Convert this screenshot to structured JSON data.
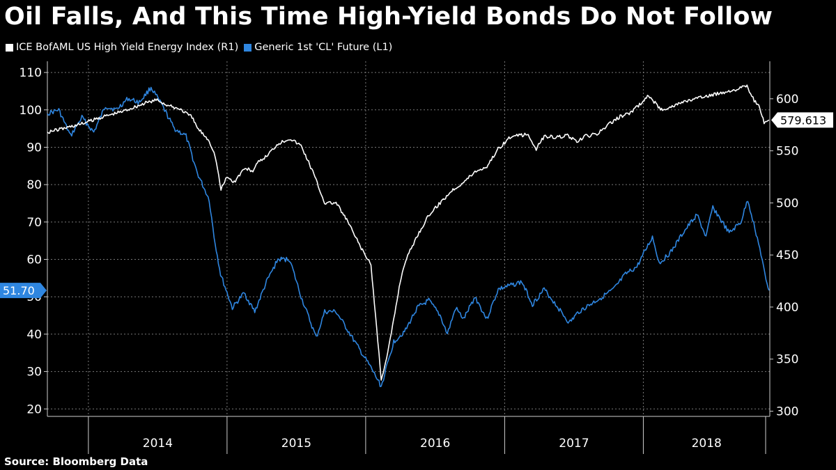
{
  "title": "Oil Falls, And This Time High-Yield Bonds Do Not Follow",
  "source": "Source: Bloomberg Data",
  "colors": {
    "index": "#ffffff",
    "oil": "#2f86e0",
    "grid": "#7a7a7a"
  },
  "chart_data": {
    "type": "line",
    "title": "Oil Falls, And This Time High-Yield Bonds Do Not Follow",
    "x_tick_labels": [
      "2014",
      "2015",
      "2016",
      "2017",
      "2018"
    ],
    "x_range": [
      "2013-09-15",
      "2018-11-30"
    ],
    "left_axis": {
      "ticks": [
        20,
        30,
        40,
        50,
        60,
        70,
        80,
        90,
        100,
        110
      ],
      "ylim": [
        18,
        113
      ]
    },
    "right_axis": {
      "ticks": [
        300,
        350,
        400,
        450,
        500,
        550,
        600
      ],
      "ylim": [
        295,
        636
      ]
    },
    "grid": true,
    "legend": "top-left",
    "series": [
      {
        "name": "ICE BofAML US High Yield Energy Index  (R1)",
        "axis": "right",
        "last_value_label": "579.613",
        "points": [
          [
            "2013-09-15",
            568
          ],
          [
            "2013-11-01",
            572
          ],
          [
            "2013-12-15",
            576
          ],
          [
            "2014-02-01",
            582
          ],
          [
            "2014-04-01",
            588
          ],
          [
            "2014-06-01",
            596
          ],
          [
            "2014-07-01",
            599
          ],
          [
            "2014-08-01",
            593
          ],
          [
            "2014-09-01",
            590
          ],
          [
            "2014-10-01",
            582
          ],
          [
            "2014-10-15",
            572
          ],
          [
            "2014-11-15",
            560
          ],
          [
            "2014-12-01",
            545
          ],
          [
            "2014-12-16",
            513
          ],
          [
            "2015-01-01",
            525
          ],
          [
            "2015-01-20",
            520
          ],
          [
            "2015-02-15",
            533
          ],
          [
            "2015-03-10",
            531
          ],
          [
            "2015-03-25",
            539
          ],
          [
            "2015-04-15",
            545
          ],
          [
            "2015-05-15",
            557
          ],
          [
            "2015-06-15",
            562
          ],
          [
            "2015-07-15",
            555
          ],
          [
            "2015-08-15",
            530
          ],
          [
            "2015-09-15",
            500
          ],
          [
            "2015-10-15",
            500
          ],
          [
            "2015-11-15",
            482
          ],
          [
            "2015-12-15",
            460
          ],
          [
            "2016-01-15",
            440
          ],
          [
            "2016-02-11",
            331
          ],
          [
            "2016-02-25",
            350
          ],
          [
            "2016-03-15",
            388
          ],
          [
            "2016-04-01",
            425
          ],
          [
            "2016-04-15",
            445
          ],
          [
            "2016-05-15",
            468
          ],
          [
            "2016-06-15",
            488
          ],
          [
            "2016-07-15",
            500
          ],
          [
            "2016-08-15",
            512
          ],
          [
            "2016-09-15",
            520
          ],
          [
            "2016-10-15",
            530
          ],
          [
            "2016-11-15",
            535
          ],
          [
            "2016-12-15",
            552
          ],
          [
            "2017-01-15",
            563
          ],
          [
            "2017-03-01",
            566
          ],
          [
            "2017-03-25",
            552
          ],
          [
            "2017-04-15",
            564
          ],
          [
            "2017-05-20",
            563
          ],
          [
            "2017-06-15",
            565
          ],
          [
            "2017-07-10",
            558
          ],
          [
            "2017-08-01",
            564
          ],
          [
            "2017-09-01",
            566
          ],
          [
            "2017-10-01",
            575
          ],
          [
            "2017-11-01",
            583
          ],
          [
            "2017-12-01",
            587
          ],
          [
            "2018-01-15",
            603
          ],
          [
            "2018-02-15",
            590
          ],
          [
            "2018-03-15",
            592
          ],
          [
            "2018-04-15",
            597
          ],
          [
            "2018-06-01",
            601
          ],
          [
            "2018-07-15",
            605
          ],
          [
            "2018-09-01",
            609
          ],
          [
            "2018-10-01",
            612
          ],
          [
            "2018-10-20",
            598
          ],
          [
            "2018-11-01",
            593
          ],
          [
            "2018-11-15",
            577
          ],
          [
            "2018-11-28",
            579.613
          ]
        ]
      },
      {
        "name": "Generic 1st 'CL' Future  (L1)",
        "axis": "left",
        "last_value_label": "51.70",
        "points": [
          [
            "2013-09-15",
            99
          ],
          [
            "2013-10-15",
            100
          ],
          [
            "2013-11-15",
            93
          ],
          [
            "2013-12-15",
            98
          ],
          [
            "2014-01-15",
            94
          ],
          [
            "2014-02-15",
            101
          ],
          [
            "2014-03-15",
            100
          ],
          [
            "2014-04-15",
            103
          ],
          [
            "2014-05-15",
            102
          ],
          [
            "2014-06-15",
            106
          ],
          [
            "2014-07-15",
            101
          ],
          [
            "2014-08-15",
            95
          ],
          [
            "2014-09-15",
            93
          ],
          [
            "2014-10-15",
            83
          ],
          [
            "2014-11-15",
            76
          ],
          [
            "2014-11-28",
            66
          ],
          [
            "2014-12-15",
            56
          ],
          [
            "2015-01-15",
            47
          ],
          [
            "2015-02-15",
            51
          ],
          [
            "2015-03-15",
            46
          ],
          [
            "2015-04-15",
            54
          ],
          [
            "2015-05-15",
            60
          ],
          [
            "2015-06-15",
            60
          ],
          [
            "2015-07-15",
            50
          ],
          [
            "2015-08-24",
            39
          ],
          [
            "2015-09-15",
            46
          ],
          [
            "2015-10-15",
            46
          ],
          [
            "2015-11-15",
            41
          ],
          [
            "2015-12-15",
            36
          ],
          [
            "2016-01-15",
            31
          ],
          [
            "2016-02-11",
            26
          ],
          [
            "2016-03-15",
            38
          ],
          [
            "2016-04-15",
            41
          ],
          [
            "2016-05-15",
            47
          ],
          [
            "2016-06-15",
            49
          ],
          [
            "2016-07-15",
            45
          ],
          [
            "2016-08-03",
            40
          ],
          [
            "2016-08-25",
            47
          ],
          [
            "2016-09-15",
            44
          ],
          [
            "2016-10-15",
            50
          ],
          [
            "2016-11-15",
            44
          ],
          [
            "2016-12-15",
            52
          ],
          [
            "2017-01-15",
            53
          ],
          [
            "2017-02-15",
            54
          ],
          [
            "2017-03-15",
            48
          ],
          [
            "2017-04-15",
            52
          ],
          [
            "2017-05-15",
            48
          ],
          [
            "2017-06-20",
            43
          ],
          [
            "2017-07-15",
            46
          ],
          [
            "2017-08-15",
            48
          ],
          [
            "2017-09-15",
            50
          ],
          [
            "2017-10-15",
            52
          ],
          [
            "2017-11-15",
            56
          ],
          [
            "2017-12-15",
            58
          ],
          [
            "2018-01-25",
            66
          ],
          [
            "2018-02-12",
            59
          ],
          [
            "2018-03-15",
            62
          ],
          [
            "2018-04-15",
            67
          ],
          [
            "2018-05-22",
            72
          ],
          [
            "2018-06-15",
            66
          ],
          [
            "2018-07-03",
            74
          ],
          [
            "2018-08-15",
            67
          ],
          [
            "2018-09-15",
            70
          ],
          [
            "2018-10-03",
            76
          ],
          [
            "2018-10-25",
            67
          ],
          [
            "2018-11-10",
            60
          ],
          [
            "2018-11-20",
            54
          ],
          [
            "2018-11-28",
            51.7
          ]
        ]
      }
    ]
  }
}
